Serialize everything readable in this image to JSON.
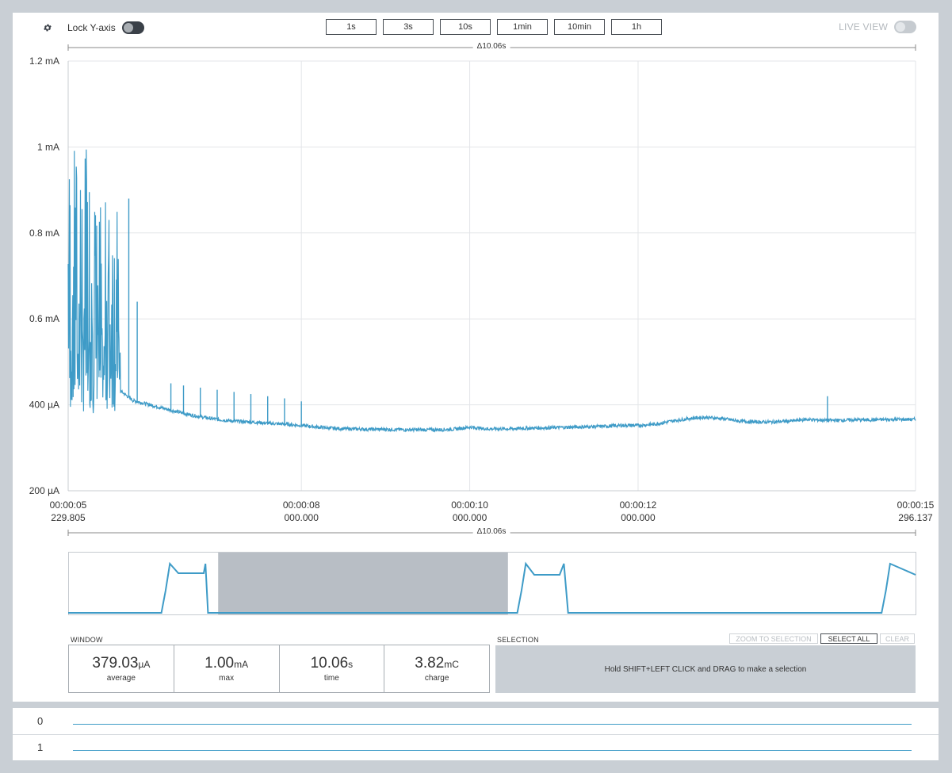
{
  "toolbar": {
    "settings_icon": "gear-icon",
    "lock_y_label": "Lock Y-axis",
    "lock_y_on": true,
    "window_buttons": [
      "1s",
      "3s",
      "10s",
      "1min",
      "10min",
      "1h"
    ],
    "live_view_label": "LIVE VIEW",
    "live_view_on": false
  },
  "chart": {
    "delta_top": "Δ10.06s",
    "delta_bottom": "Δ10.06s",
    "x_tick_labels": [
      {
        "time": "00:00:05",
        "sub": "229.805"
      },
      {
        "time": "00:00:08",
        "sub": "000.000"
      },
      {
        "time": "00:00:10",
        "sub": "000.000"
      },
      {
        "time": "00:00:12",
        "sub": "000.000"
      },
      {
        "time": "00:00:15",
        "sub": "296.137"
      }
    ],
    "y_tick_labels": [
      "1.2 mA",
      "1 mA",
      "0.8 mA",
      "0.6 mA",
      "400 µA",
      "200 µA"
    ],
    "line_color": "#3e9bc7"
  },
  "chart_data": {
    "type": "line",
    "title": "",
    "xlabel": "",
    "ylabel": "",
    "x_unit": "s",
    "y_unit": "µA",
    "xlim": [
      5.229805,
      15.296137
    ],
    "ylim": [
      200,
      1200
    ],
    "x_ticks": [
      5.229805,
      8.0,
      10.0,
      12.0,
      15.296137
    ],
    "y_ticks": [
      1200,
      1000,
      800,
      600,
      400,
      200
    ],
    "grid": true,
    "series": [
      {
        "x": [
          5.23,
          5.3,
          5.4,
          5.5,
          5.6,
          5.7,
          5.8,
          5.9,
          6.0,
          6.2,
          6.4,
          6.6,
          6.8,
          7.0,
          7.2,
          7.4,
          7.6,
          7.8,
          8.0,
          8.2,
          8.4,
          8.6,
          8.8,
          9.0,
          9.2,
          9.4,
          9.6,
          9.8,
          10.0,
          10.2,
          10.4,
          10.6,
          10.8,
          11.0,
          11.2,
          11.4,
          11.6,
          11.8,
          12.0,
          12.2,
          12.4,
          12.6,
          12.8,
          13.0,
          13.2,
          13.4,
          13.6,
          13.8,
          14.0,
          14.2,
          14.4,
          14.6,
          14.8,
          15.0,
          15.296
        ],
        "y": [
          840,
          620,
          700,
          560,
          520,
          460,
          440,
          425,
          410,
          400,
          390,
          380,
          372,
          366,
          362,
          360,
          357,
          355,
          352,
          348,
          345,
          344,
          343,
          343,
          342,
          342,
          342,
          343,
          348,
          344,
          344,
          345,
          346,
          347,
          348,
          349,
          350,
          352,
          352,
          355,
          362,
          368,
          371,
          368,
          362,
          360,
          360,
          362,
          366,
          364,
          364,
          365,
          365,
          366,
          366
        ]
      }
    ]
  },
  "minimap": {
    "x": [
      0,
      0.11,
      0.115,
      0.12,
      0.13,
      0.16,
      0.162,
      0.165,
      0.17,
      0.5,
      0.53,
      0.535,
      0.54,
      0.55,
      0.58,
      0.585,
      0.59,
      0.93,
      0.96,
      0.965,
      0.97,
      1.0
    ],
    "y": [
      2,
      2,
      30,
      64,
      52,
      52,
      64,
      2,
      2,
      2,
      2,
      30,
      64,
      50,
      50,
      64,
      2,
      2,
      2,
      30,
      64,
      50
    ],
    "selection_start": 0.177,
    "selection_end": 0.519
  },
  "window_section": {
    "label": "WINDOW",
    "stats": [
      {
        "value": "379.03",
        "unit": "µA",
        "label": "average"
      },
      {
        "value": "1.00",
        "unit": "mA",
        "label": "max"
      },
      {
        "value": "10.06",
        "unit": "s",
        "label": "time"
      },
      {
        "value": "3.82",
        "unit": "mC",
        "label": "charge"
      }
    ]
  },
  "selection_section": {
    "label": "SELECTION",
    "zoom_label": "ZOOM TO SELECTION",
    "select_all_label": "SELECT ALL",
    "clear_label": "CLEAR",
    "hint": "Hold SHIFT+LEFT CLICK and DRAG to make a selection"
  },
  "digital_channels": {
    "rows": [
      "0",
      "1"
    ]
  }
}
